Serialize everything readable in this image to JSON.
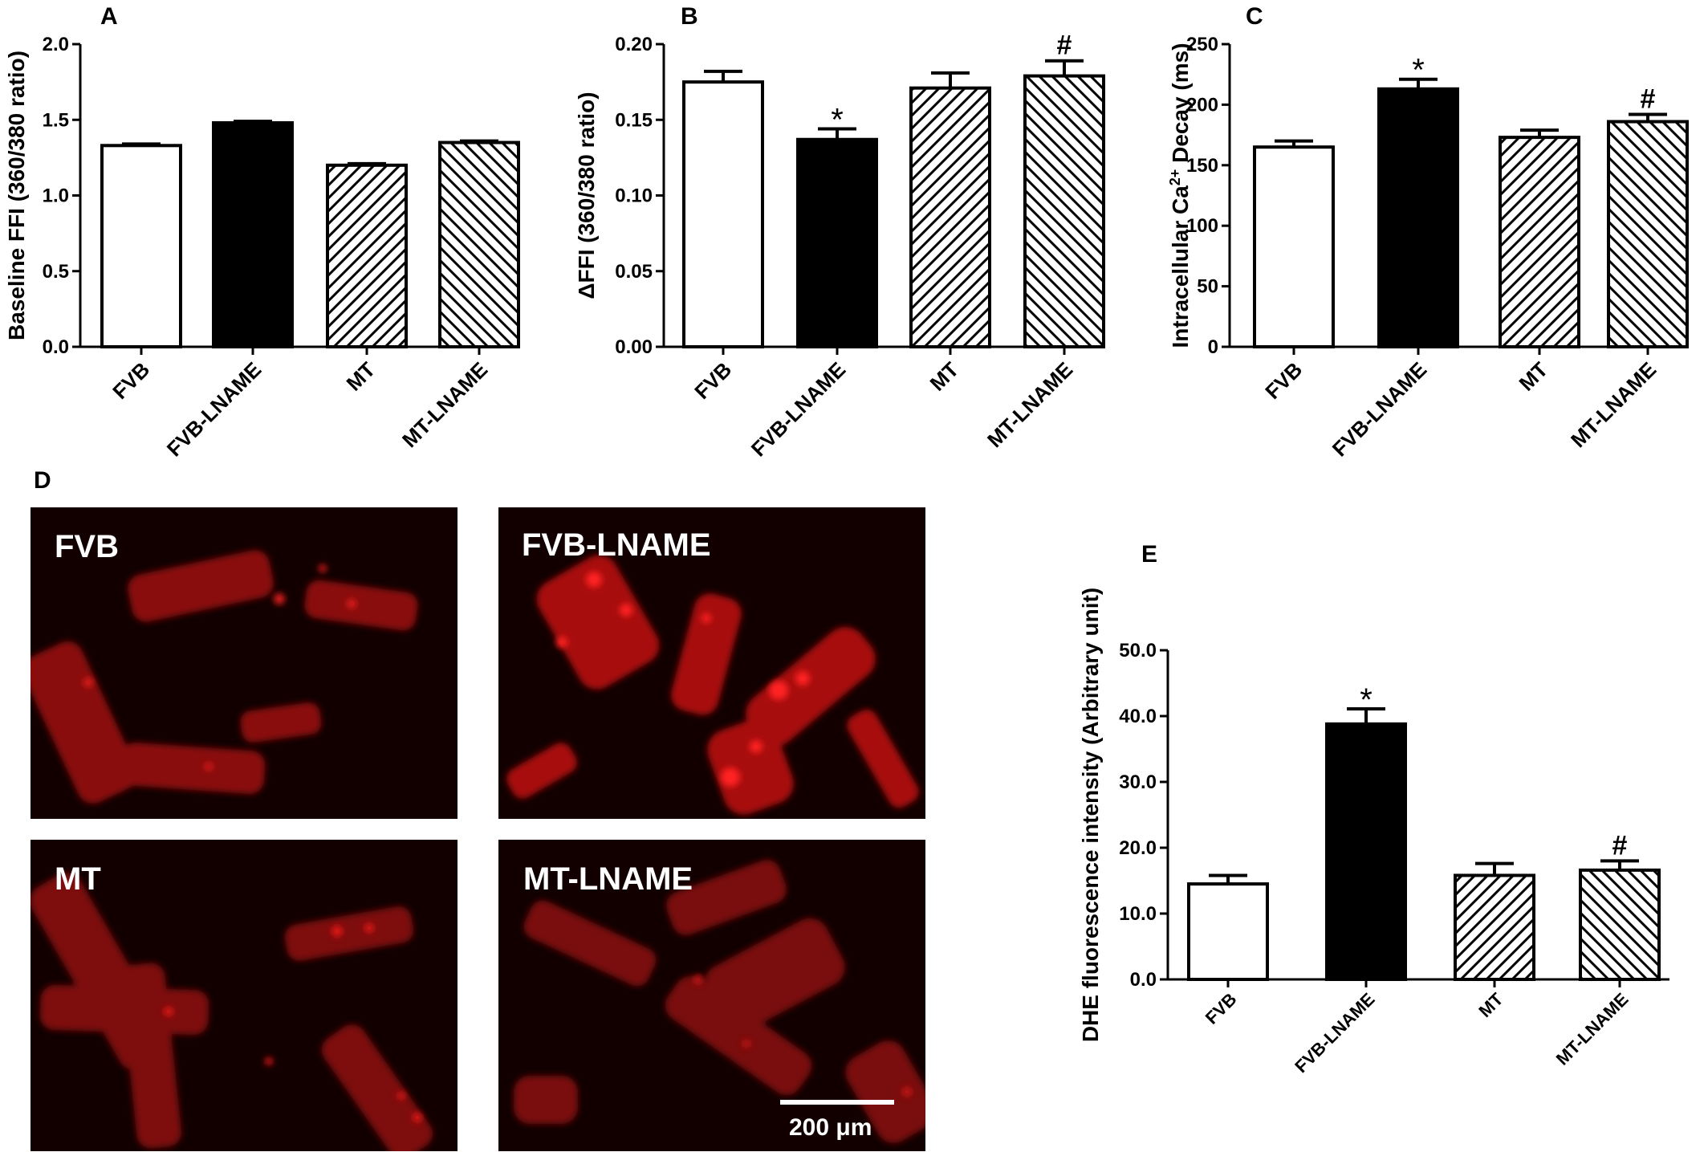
{
  "figure": {
    "panel_d_letter": "D",
    "micrographs": [
      {
        "label": "FVB"
      },
      {
        "label": "FVB-LNAME"
      },
      {
        "label": "MT"
      },
      {
        "label": "MT-LNAME"
      }
    ],
    "scale_bar_label": "200 μm"
  },
  "colors": {
    "bar_outline": "#000000",
    "bar_solid": "#000000",
    "micrograph_background": "#120000",
    "cell_red": "#c81414",
    "bright_red": "#ff1a1a"
  },
  "chart_data": [
    {
      "panel": "A",
      "type": "bar",
      "categories": [
        "FVB",
        "FVB-LNAME",
        "MT",
        "MT-LNAME"
      ],
      "values": [
        1.33,
        1.48,
        1.2,
        1.35
      ],
      "errors": [
        0.01,
        0.01,
        0.01,
        0.01
      ],
      "fills": [
        "white",
        "black",
        "hatch",
        "backhatch"
      ],
      "annotations": [
        "",
        "",
        "",
        ""
      ],
      "ylabel": "Baseline FFI (360/380 ratio)",
      "ylim": [
        0,
        2.0
      ],
      "yticks": [
        "0.0",
        "0.5",
        "1.0",
        "1.5",
        "2.0"
      ],
      "ytick_values": [
        0,
        0.5,
        1.0,
        1.5,
        2.0
      ],
      "grid": false
    },
    {
      "panel": "B",
      "type": "bar",
      "categories": [
        "FVB",
        "FVB-LNAME",
        "MT",
        "MT-LNAME"
      ],
      "values": [
        0.175,
        0.137,
        0.171,
        0.179
      ],
      "errors": [
        0.007,
        0.007,
        0.01,
        0.01
      ],
      "fills": [
        "white",
        "black",
        "hatch",
        "backhatch"
      ],
      "annotations": [
        "",
        "*",
        "",
        "#"
      ],
      "ylabel": "ΔFFI (360/380 ratio)",
      "ylim": [
        0,
        0.2
      ],
      "yticks": [
        "0.00",
        "0.05",
        "0.10",
        "0.15",
        "0.20"
      ],
      "ytick_values": [
        0,
        0.05,
        0.1,
        0.15,
        0.2
      ],
      "grid": false
    },
    {
      "panel": "C",
      "type": "bar",
      "categories": [
        "FVB",
        "FVB-LNAME",
        "MT",
        "MT-LNAME"
      ],
      "values": [
        165,
        213,
        173,
        186
      ],
      "errors": [
        5,
        8,
        6,
        6
      ],
      "fills": [
        "white",
        "black",
        "hatch",
        "backhatch"
      ],
      "annotations": [
        "",
        "*",
        "",
        "#"
      ],
      "ylabel_main": "Intracellular Ca",
      "ylabel_sup": "2+",
      "ylabel_tail": " Decay (ms)",
      "ylim": [
        0,
        250
      ],
      "yticks": [
        "0",
        "50",
        "100",
        "150",
        "200",
        "250"
      ],
      "ytick_values": [
        0,
        50,
        100,
        150,
        200,
        250
      ],
      "grid": false
    },
    {
      "panel": "E",
      "type": "bar",
      "categories": [
        "FVB",
        "FVB-LNAME",
        "MT",
        "MT-LNAME"
      ],
      "values": [
        14.5,
        38.8,
        15.8,
        16.6
      ],
      "errors": [
        1.3,
        2.3,
        1.8,
        1.4
      ],
      "fills": [
        "white",
        "black",
        "hatch",
        "backhatch"
      ],
      "annotations": [
        "",
        "*",
        "",
        "#"
      ],
      "ylabel": "DHE fluorescence intensity (Arbitrary unit)",
      "ylim": [
        0,
        50
      ],
      "yticks": [
        "0.0",
        "10.0",
        "20.0",
        "30.0",
        "40.0",
        "50.0"
      ],
      "ytick_values": [
        0,
        10,
        20,
        30,
        40,
        50
      ],
      "grid": false
    }
  ]
}
